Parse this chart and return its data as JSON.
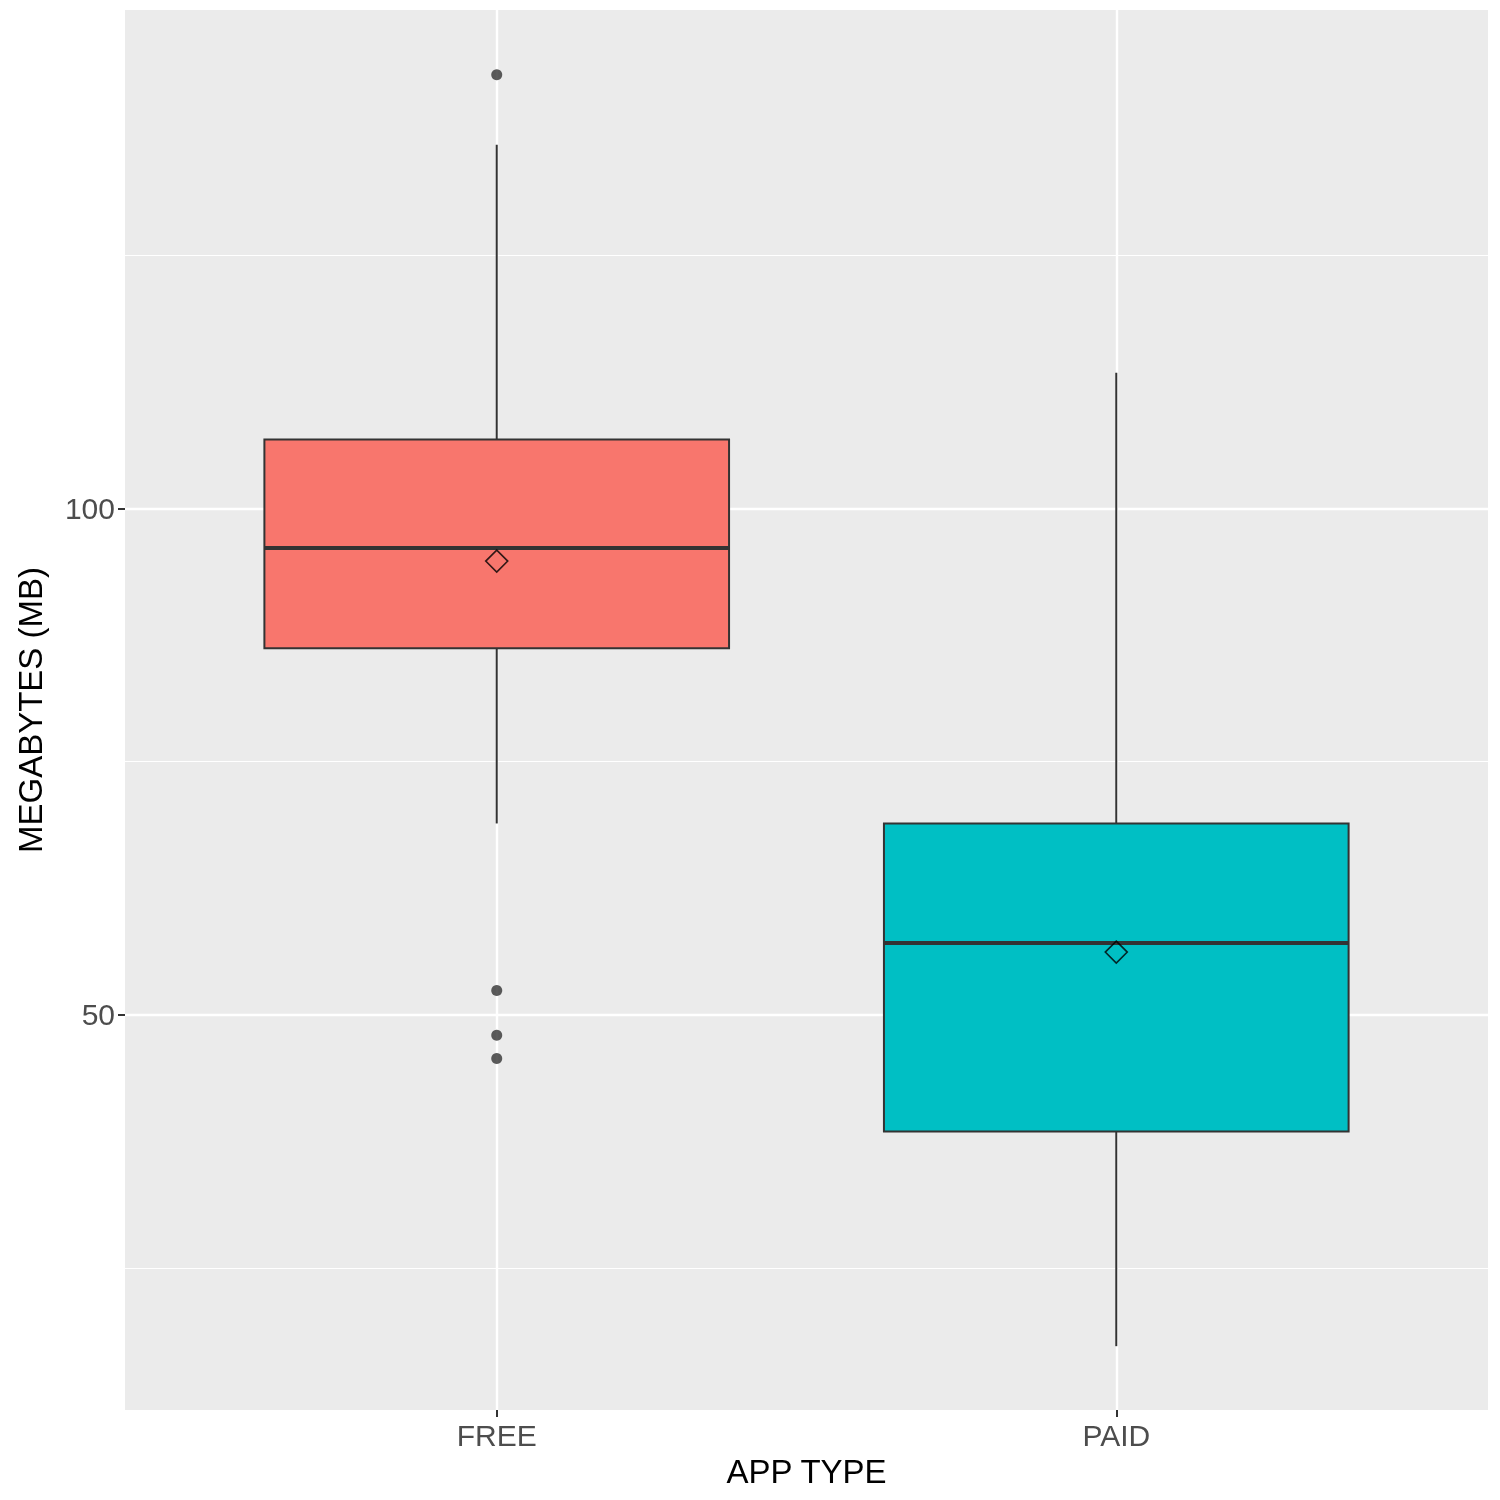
{
  "chart_data": {
    "type": "box",
    "xlabel": "APP TYPE",
    "ylabel": "MEGABYTES (MB)",
    "categories": [
      "FREE",
      "PAID"
    ],
    "colors": [
      "#f8766d",
      "#00bfc4"
    ],
    "boxes": [
      {
        "low": 68.9,
        "q1": 86.2,
        "median": 96.1,
        "q3": 106.8,
        "high": 135.9,
        "mean": 94.8,
        "outliers": [
          142.8,
          52.4,
          48.0,
          45.7
        ]
      },
      {
        "low": 17.3,
        "q1": 38.5,
        "median": 57.1,
        "q3": 68.9,
        "high": 113.4,
        "mean": 56.2
      }
    ],
    "ylim": [
      11.0,
      149.2
    ],
    "yticks": [
      50,
      100
    ],
    "grid": true
  }
}
